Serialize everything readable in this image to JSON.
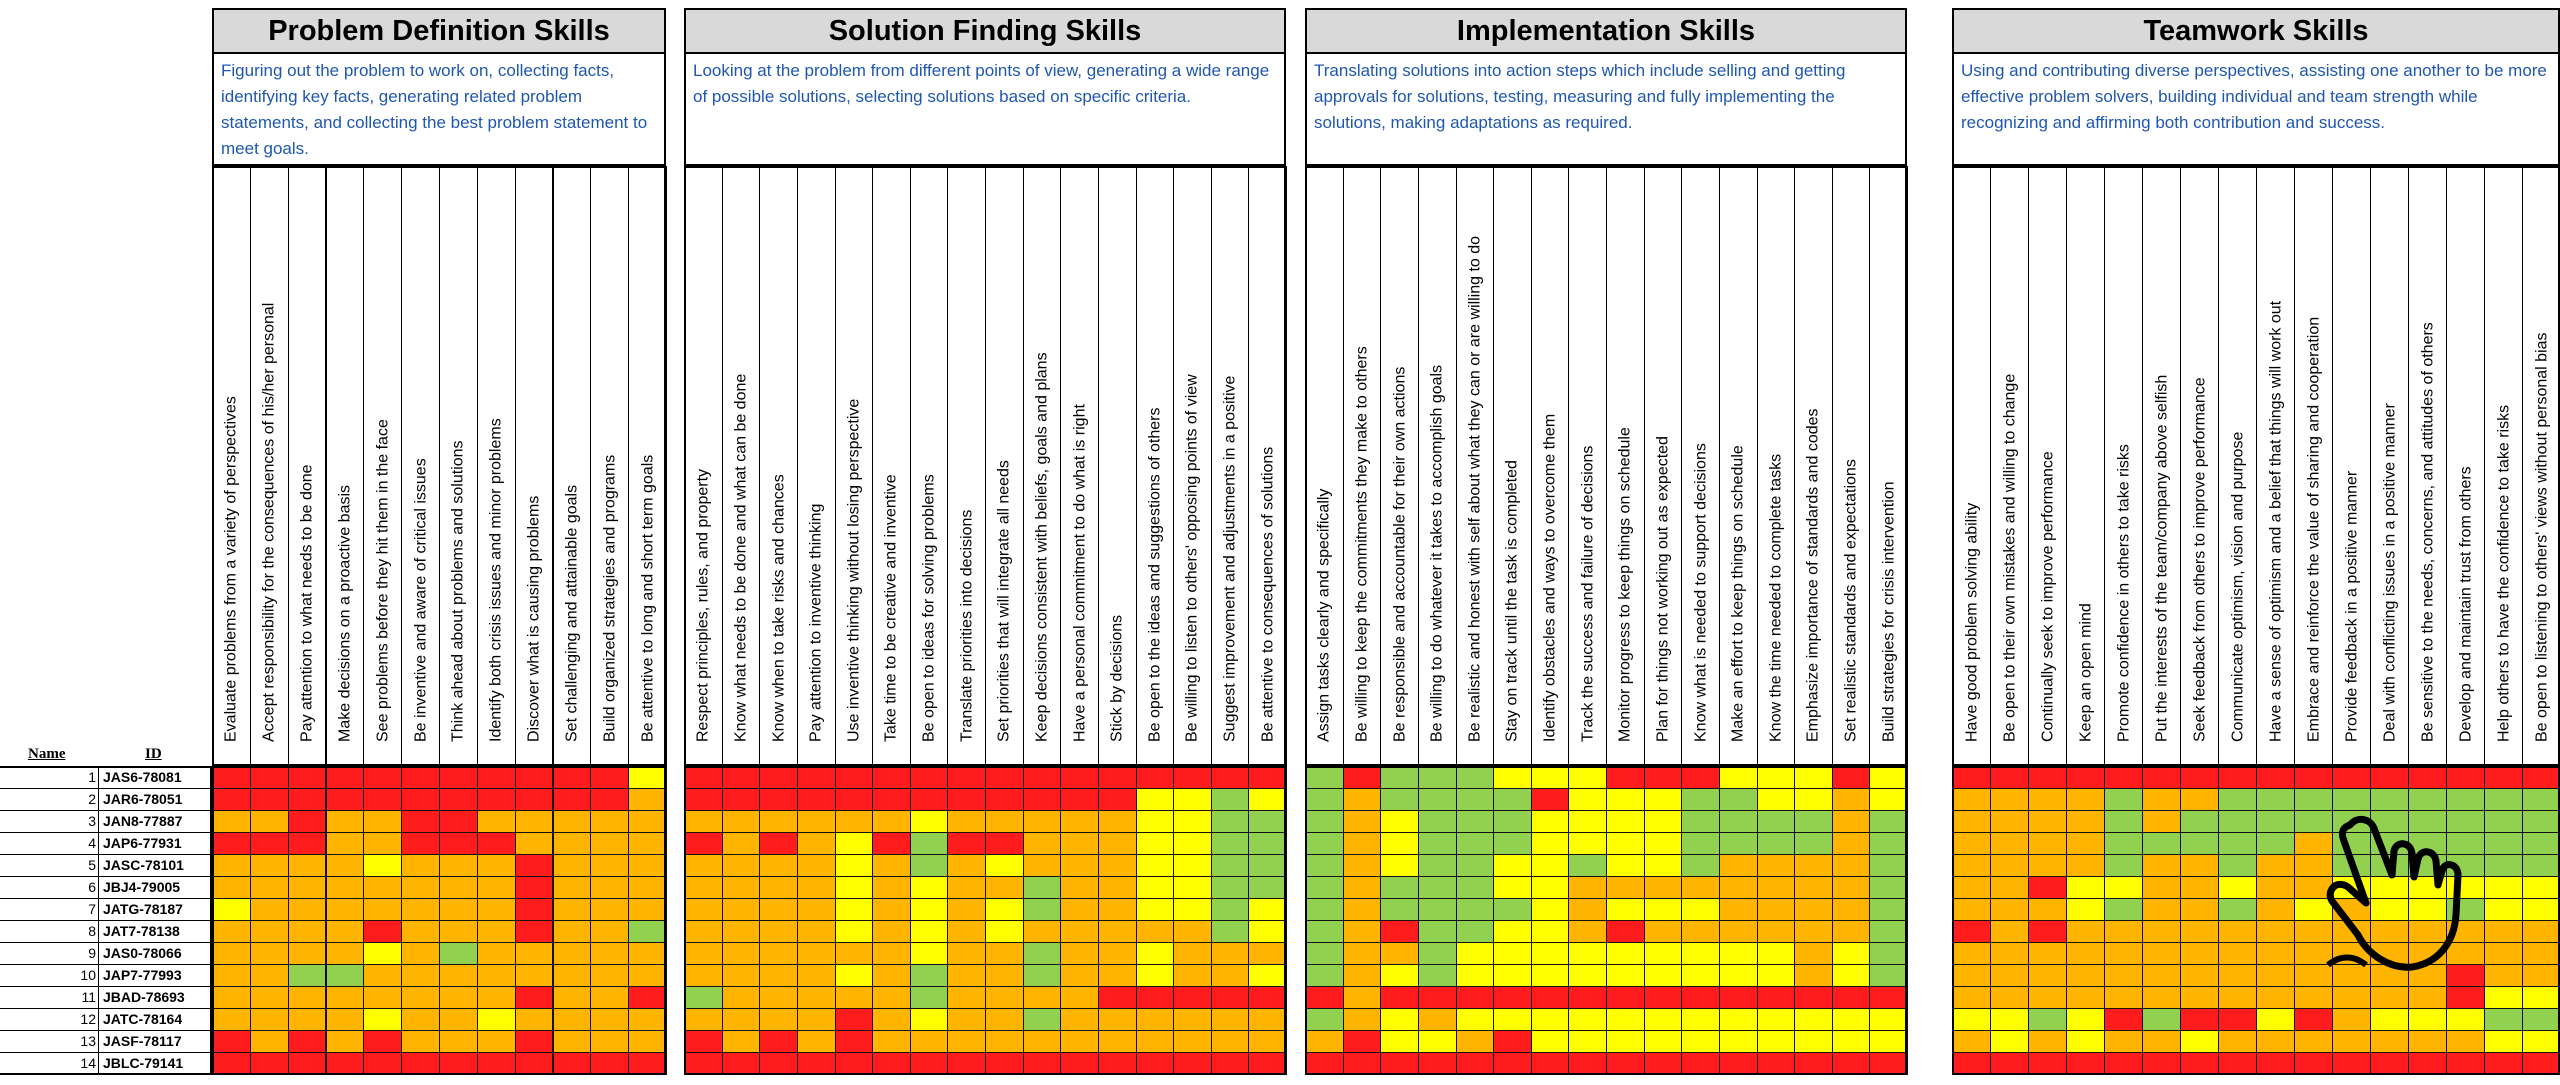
{
  "colors": {
    "R": "#ff1c1c",
    "O": "#ffb400",
    "Y": "#ffff00",
    "G": "#92d050",
    "title_bg": "#d9d9d9",
    "desc_text": "#1f57b0"
  },
  "labels": {
    "name": "Name",
    "id": "ID"
  },
  "sections": [
    {
      "title": "Problem Definition Skills",
      "description": "Figuring out the problem to work on, collecting facts, identifying key facts, generating related problem statements, and collecting the best problem statement to meet goals.",
      "columns": [
        "Evaluate problems from a variety of perspectives",
        "Accept responsibility for the consequences of his/her personal",
        "Pay attention to what needs to be done",
        "Make decisions on a proactive basis",
        "See problems before they hit them in the face",
        "Be inventive and aware of critical issues",
        "Think ahead about problems and solutions",
        "Identify both crisis issues and minor problems",
        "Discover what is causing problems",
        "Set challenging and attainable goals",
        "Build organized strategies and programs",
        "Be attentive to long and short term goals"
      ],
      "grid": [
        "RRRRRRRRRRRY",
        "RRRRRRRRRRRO",
        "OOROORROOOOO",
        "RRROORRROOOO",
        "OOOOYOOOROOO",
        "OOOOOOOOROOO",
        "YOOOOOOOROOO",
        "OOOOROOOROOG",
        "OOOOYOGOOOOO",
        "OOGGOOOOOOOO",
        "OOOOOOOOROOR",
        "OOOOYOOYOOOO",
        "ROROROOOROOO",
        "RRRRRRRRRRRR"
      ]
    },
    {
      "title": "Solution Finding Skills",
      "description": "Looking at the problem from different points of view, generating a wide range of possible solutions, selecting solutions based on specific criteria.",
      "columns": [
        "Respect principles, rules, and property",
        "Know what needs to be done and what can be done",
        "Know when to take risks and chances",
        "Pay attention to inventive thinking",
        "Use inventive thinking without losing perspective",
        "Take time to be creative and inventive",
        "Be open to ideas for solving problems",
        "Translate priorities into decisions",
        "Set priorities that will integrate all needs",
        "Keep decisions consistent with beliefs, goals and plans",
        "Have a personal commitment to do what is right",
        "Stick by decisions",
        "Be open to the ideas and suggestions of others",
        "Be willing to listen to others' opposing points of view",
        "Suggest improvement and adjustments in a positive",
        "Be attentive to consequences of solutions"
      ],
      "grid": [
        "RRRRRRRRRRRRRRRR",
        "RRRRRRRRRRRRYYGY",
        "OOOOOOYOOOOOYYGG",
        "ROROYRGRROOOYYGG",
        "OOOOYOGOYOOOYYGG",
        "OOOOYOYOOGOOYYGG",
        "OOOOYOYOYGOOYYGY",
        "OOOOYOYOYOOOOOGY",
        "OOOOOOYOOGOOYOOO",
        "OOOOYOGOOGOOYOOY",
        "GOOOOOGOOOORRRRR",
        "OOOOROYOOGOOOOOO",
        "ROROROOOOOOOOOOO",
        "RRRRRRRRRRRRRRRR"
      ]
    },
    {
      "title": "Implementation Skills",
      "description": "Translating solutions into action steps which include selling and getting approvals for solutions, testing, measuring and fully implementing the solutions, making adaptations as required.",
      "columns": [
        "Assign tasks clearly and specifically",
        "Be willing to keep the commitments they make to others",
        "Be responsible and accountable for their own actions",
        "Be willing to do whatever it takes to accomplish goals",
        "Be realistic and honest with self about what they can or are willing to do",
        "Stay on track until the task is completed",
        "Identify obstacles and ways to overcome them",
        "Track the success and failure of decisions",
        "Monitor progress to keep things on schedule",
        "Plan for things not working out as expected",
        "Know what is needed to support decisions",
        "Make an effort to keep things on schedule",
        "Know the time needed to complete tasks",
        "Emphasize importance of standards and codes",
        "Set realistic standards and expectations",
        "Build strategies for crisis intervention"
      ],
      "grid": [
        "GRGGGYYYRRRYYYRY",
        "GOGGGGRYYYGGYYOY",
        "GOYGGGYYYYGGGGOG",
        "GOYGGGYYYYGGGGOG",
        "GOYGGYYGYYGOOOOG",
        "GOGGGYYOOOOOOOOG",
        "GOGGGGYOYYYOOOOG",
        "GORGGYYOROOOOOOG",
        "GOOGYYYYYYYYYOYG",
        "GOYGYYYYYYYYYOYG",
        "RORRRRRRRRRRRRRR",
        "GOYOYYYYYYYYYYYY",
        "ORYYORYYYYYYYYYY",
        "RRRRRRRRRRRRRRRR"
      ]
    },
    {
      "title": "Teamwork Skills",
      "description": "Using and contributing diverse perspectives, assisting one another to be more effective problem solvers, building individual and team strength while recognizing and affirming both contribution and success.",
      "columns": [
        "Have good problem solving ability",
        "Be open to their own mistakes and willing to change",
        "Continually seek to improve performance",
        "Keep an open mind",
        "Promote confidence in others to take risks",
        "Put the interests of the team/company above selfish",
        "Seek feedback from others to improve performance",
        "Communicate optimism, vision and purpose",
        "Have a sense of optimism and a belief that things will work out",
        "Embrace and reinforce the value of sharing and cooperation",
        "Provide feedback in a positive manner",
        "Deal with conflicting issues in a positive manner",
        "Be sensitive to the needs, concerns, and attitudes of others",
        "Develop and maintain trust from others",
        "Help others to have the confidence to take risks",
        "Be open to listening to others' views without personal bias"
      ],
      "grid": [
        "RRRRRRRRRRRRRRRR",
        "OOOOGOOGGGGGGGGG",
        "OOOOGOGGGGGGGGGG",
        "OOOOGGGGGOGGGGGG",
        "OOOOGOOGOOGGGGGG",
        "OORYYOOYOOYYYYYY",
        "OOOYGOOGOYOYYGYY",
        "ROROOOOOOOOOOOOO",
        "OOOOOOOOOOOOOOOO",
        "OOOOOOOOOOOOOROO",
        "OOOOOOOOOOOOORYY",
        "YYGYRGRRYROYYYGG",
        "OYOYOOYOOOOOOOYY",
        "RRRRRRRRRRRRRRRR"
      ]
    }
  ],
  "rows": [
    {
      "n": "1",
      "id": "JAS6-78081"
    },
    {
      "n": "2",
      "id": "JAR6-78051"
    },
    {
      "n": "3",
      "id": "JAN8-77887"
    },
    {
      "n": "4",
      "id": "JAP6-77931"
    },
    {
      "n": "5",
      "id": "JASC-78101"
    },
    {
      "n": "6",
      "id": "JBJ4-79005"
    },
    {
      "n": "7",
      "id": "JATG-78187"
    },
    {
      "n": "8",
      "id": "JAT7-78138"
    },
    {
      "n": "9",
      "id": "JAS0-78066"
    },
    {
      "n": "10",
      "id": "JAP7-77993"
    },
    {
      "n": "11",
      "id": "JBAD-78693"
    },
    {
      "n": "12",
      "id": "JATC-78164"
    },
    {
      "n": "13",
      "id": "JASF-78117"
    },
    {
      "n": "14",
      "id": "JBLC-79141"
    }
  ]
}
